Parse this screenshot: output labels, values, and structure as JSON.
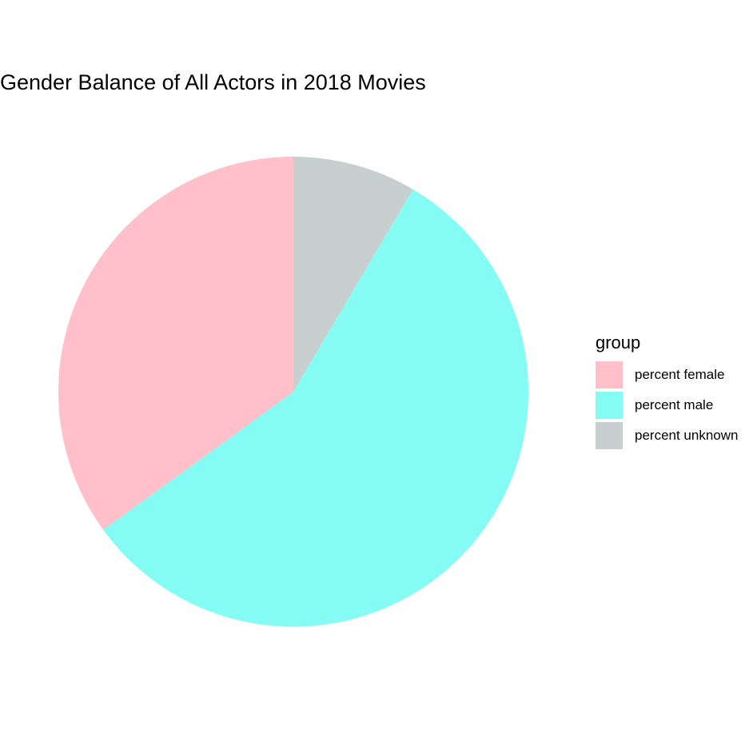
{
  "chart_data": {
    "type": "pie",
    "title": "Gender Balance of All Actors in 2018 Movies",
    "legend_title": "group",
    "legend_position": "right",
    "direction": "clockwise",
    "start_angle_deg": 0,
    "slices": [
      {
        "name": "percent unknown",
        "value": 8.5,
        "color": "#C7CFCF"
      },
      {
        "name": "percent male",
        "value": 56.5,
        "color": "#84FCF3"
      },
      {
        "name": "percent female",
        "value": 35.0,
        "color": "#FFC0CA"
      }
    ],
    "legend_order": [
      "percent female",
      "percent male",
      "percent unknown"
    ]
  }
}
